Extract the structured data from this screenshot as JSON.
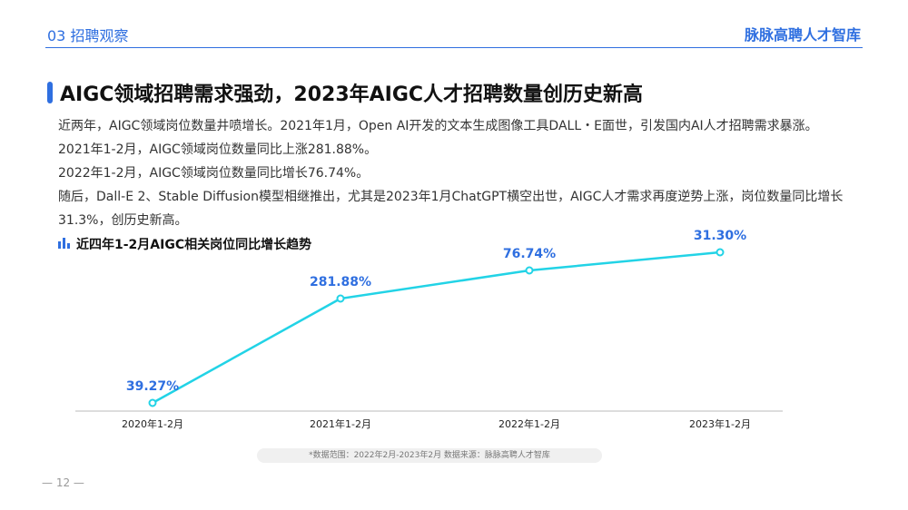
{
  "header": {
    "section": "03 招聘观察",
    "brand": "脉脉高聘人才智库"
  },
  "title": "AIGC领域招聘需求强劲，2023年AIGC人才招聘数量创历史新高",
  "paragraphs": [
    "近两年，AIGC领域岗位数量井喷增长。2021年1月，Open AI开发的文本生成图像工具DALL・E面世，引发国内AI人才招聘需求暴涨。",
    "2021年1-2月，AIGC领域岗位数量同比上涨281.88%。",
    "2022年1-2月，AIGC领域岗位数量同比增长76.74%。",
    "随后，Dall-E 2、Stable Diffusion模型相继推出，尤其是2023年1月ChatGPT横空出世，AIGC人才需求再度逆势上涨，岗位数量同比增长",
    "31.3%，创历史新高。"
  ],
  "chart_data": {
    "type": "line",
    "title": "近四年1-2月AIGC相关岗位同比增长趋势",
    "categories": [
      "2020年1-2月",
      "2021年1-2月",
      "2022年1-2月",
      "2023年1-2月"
    ],
    "data_labels": [
      "39.27%",
      "281.88%",
      "76.74%",
      "31.30%"
    ],
    "values": [
      39.27,
      281.88,
      76.74,
      31.3
    ],
    "xlabel": "",
    "ylabel": "",
    "line_color": "#22d3e6",
    "label_color": "#2f6fe0"
  },
  "footer": {
    "source": "*数据范围：2022年2月-2023年2月        数据来源：脉脉高聘人才智库",
    "page": "— 12 —"
  }
}
